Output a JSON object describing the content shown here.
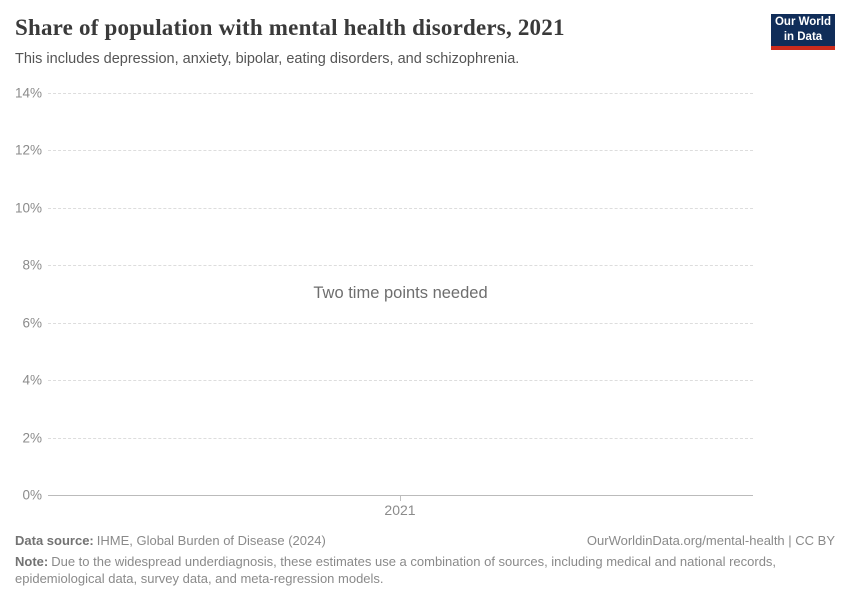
{
  "header": {
    "title": "Share of population with mental health disorders, 2021",
    "subtitle": "This includes depression, anxiety, bipolar, eating disorders, and schizophrenia.",
    "logo": {
      "line1": "Our World",
      "line2": "in Data",
      "bg_color": "#102d59",
      "accent_color": "#cc2b1c"
    }
  },
  "chart_data": {
    "type": "line",
    "title": "Share of population with mental health disorders, 2021",
    "subtitle": "This includes depression, anxiety, bipolar, eating disorders, and schizophrenia.",
    "series": [],
    "empty_message": "Two time points needed",
    "x_ticks": [
      "2021"
    ],
    "y_ticks": [
      "0%",
      "2%",
      "4%",
      "6%",
      "8%",
      "10%",
      "12%",
      "14%"
    ],
    "ylim": [
      0,
      14
    ],
    "y_unit": "%",
    "xlabel": "",
    "ylabel": "",
    "grid": "horizontal-dashed",
    "legend": "none"
  },
  "colors": {
    "grid": "#dddddd",
    "axis_line": "#bbbbbb",
    "tick_text": "#8b8b8b",
    "muted_text": "#8a8a8a"
  },
  "footer": {
    "data_source_label": "Data source:",
    "data_source": "IHME, Global Burden of Disease (2024)",
    "link": "OurWorldinData.org/mental-health | CC BY",
    "note_label": "Note:",
    "note": "Due to the widespread underdiagnosis, these estimates use a combination of sources, including medical and national records, epidemiological data, survey data, and meta-regression models."
  }
}
